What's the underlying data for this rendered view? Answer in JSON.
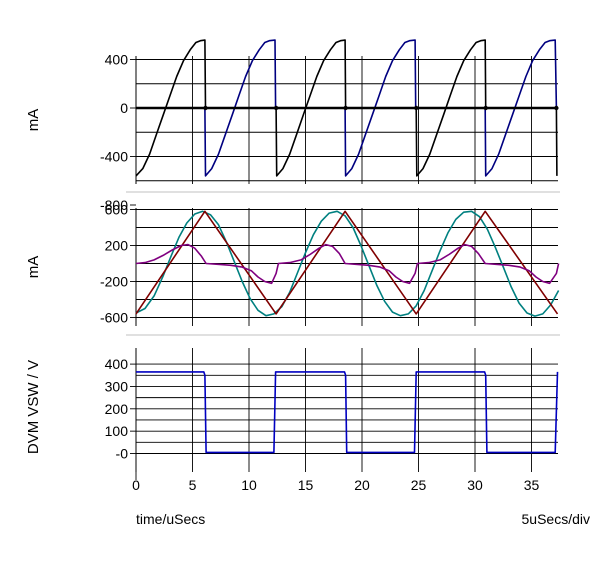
{
  "chart_data": [
    {
      "type": "line",
      "ylabel": "mA",
      "yticks": [
        400,
        0,
        -400,
        -800
      ],
      "ytick_labels": [
        "400",
        "0",
        "-400",
        "-800"
      ],
      "ylim": [
        -800,
        600
      ],
      "xlim": [
        0,
        37.5
      ],
      "series": [
        {
          "color": "#000000",
          "values": [
            [
              0,
              -560
            ],
            [
              0.6,
              -500
            ],
            [
              1.2,
              -380
            ],
            [
              1.8,
              -220
            ],
            [
              2.4,
              -60
            ],
            [
              3,
              100
            ],
            [
              3.6,
              260
            ],
            [
              4.2,
              390
            ],
            [
              4.8,
              480
            ],
            [
              5.3,
              540
            ],
            [
              5.7,
              555
            ],
            [
              6.1,
              560
            ],
            [
              6.15,
              0
            ],
            [
              12.4,
              0
            ],
            [
              12.45,
              -560
            ],
            [
              13,
              -500
            ],
            [
              13.6,
              -380
            ],
            [
              14.2,
              -220
            ],
            [
              14.8,
              -60
            ],
            [
              15.4,
              100
            ],
            [
              16,
              260
            ],
            [
              16.6,
              390
            ],
            [
              17.2,
              480
            ],
            [
              17.7,
              540
            ],
            [
              18.1,
              555
            ],
            [
              18.5,
              560
            ],
            [
              18.55,
              0
            ],
            [
              24.8,
              0
            ],
            [
              24.85,
              -560
            ],
            [
              25.4,
              -500
            ],
            [
              26,
              -380
            ],
            [
              26.6,
              -220
            ],
            [
              27.2,
              -60
            ],
            [
              27.8,
              100
            ],
            [
              28.4,
              260
            ],
            [
              29,
              390
            ],
            [
              29.6,
              480
            ],
            [
              30.1,
              540
            ],
            [
              30.5,
              555
            ],
            [
              30.9,
              560
            ],
            [
              30.95,
              0
            ],
            [
              37.2,
              0
            ],
            [
              37.25,
              -560
            ]
          ]
        },
        {
          "color": "#000080",
          "values": [
            [
              0,
              0
            ],
            [
              6.1,
              0
            ],
            [
              6.15,
              -560
            ],
            [
              6.7,
              -500
            ],
            [
              7.3,
              -380
            ],
            [
              7.9,
              -220
            ],
            [
              8.5,
              -60
            ],
            [
              9.1,
              100
            ],
            [
              9.7,
              260
            ],
            [
              10.3,
              390
            ],
            [
              10.9,
              480
            ],
            [
              11.4,
              540
            ],
            [
              11.8,
              555
            ],
            [
              12.3,
              560
            ],
            [
              12.35,
              0
            ],
            [
              18.5,
              0
            ],
            [
              18.55,
              -560
            ],
            [
              19.1,
              -500
            ],
            [
              19.7,
              -380
            ],
            [
              20.3,
              -220
            ],
            [
              20.9,
              -60
            ],
            [
              21.5,
              100
            ],
            [
              22.1,
              260
            ],
            [
              22.7,
              390
            ],
            [
              23.3,
              480
            ],
            [
              23.8,
              540
            ],
            [
              24.2,
              555
            ],
            [
              24.7,
              560
            ],
            [
              24.75,
              0
            ],
            [
              30.9,
              0
            ],
            [
              30.95,
              -560
            ],
            [
              31.5,
              -500
            ],
            [
              32.1,
              -380
            ],
            [
              32.7,
              -220
            ],
            [
              33.3,
              -60
            ],
            [
              33.9,
              100
            ],
            [
              34.5,
              260
            ],
            [
              35.1,
              390
            ],
            [
              35.7,
              480
            ],
            [
              36.2,
              540
            ],
            [
              36.6,
              555
            ],
            [
              37.1,
              560
            ],
            [
              37.2,
              0
            ]
          ]
        }
      ]
    },
    {
      "type": "line",
      "ylabel": "mA",
      "yticks": [
        600,
        200,
        -200,
        -600
      ],
      "ytick_labels": [
        "600",
        "200",
        "-200",
        "-600"
      ],
      "ylim": [
        -750,
        750
      ],
      "xlim": [
        0,
        37.5
      ],
      "series": [
        {
          "color": "#008080",
          "values": [
            [
              0,
              -550
            ],
            [
              0.8,
              -500
            ],
            [
              1.6,
              -360
            ],
            [
              2.4,
              -140
            ],
            [
              3.1,
              80
            ],
            [
              3.8,
              290
            ],
            [
              4.5,
              450
            ],
            [
              5.2,
              550
            ],
            [
              5.9,
              580
            ],
            [
              6.6,
              540
            ],
            [
              7.3,
              430
            ],
            [
              8,
              240
            ],
            [
              8.7,
              20
            ],
            [
              9.4,
              -200
            ],
            [
              10.1,
              -390
            ],
            [
              10.8,
              -520
            ],
            [
              11.5,
              -580
            ],
            [
              12.2,
              -560
            ],
            [
              12.9,
              -480
            ],
            [
              13.6,
              -320
            ],
            [
              14.3,
              -100
            ],
            [
              15,
              120
            ],
            [
              15.7,
              320
            ],
            [
              16.4,
              470
            ],
            [
              17.1,
              560
            ],
            [
              17.8,
              580
            ],
            [
              18.5,
              530
            ],
            [
              19.2,
              400
            ],
            [
              19.9,
              200
            ],
            [
              20.6,
              -20
            ],
            [
              21.3,
              -240
            ],
            [
              22,
              -420
            ],
            [
              22.7,
              -540
            ],
            [
              23.4,
              -580
            ],
            [
              24.1,
              -560
            ],
            [
              24.8,
              -470
            ],
            [
              25.5,
              -300
            ],
            [
              26.2,
              -80
            ],
            [
              26.9,
              140
            ],
            [
              27.6,
              340
            ],
            [
              28.3,
              490
            ],
            [
              29,
              570
            ],
            [
              29.7,
              580
            ],
            [
              30.4,
              520
            ],
            [
              31.1,
              380
            ],
            [
              31.8,
              180
            ],
            [
              32.5,
              -40
            ],
            [
              33.2,
              -260
            ],
            [
              33.9,
              -440
            ],
            [
              34.6,
              -550
            ],
            [
              35.3,
              -585
            ],
            [
              36,
              -560
            ],
            [
              36.7,
              -460
            ],
            [
              37.4,
              -300
            ]
          ]
        },
        {
          "color": "#800000",
          "values": [
            [
              0,
              -560
            ],
            [
              6.1,
              580
            ],
            [
              12.4,
              -560
            ],
            [
              18.5,
              580
            ],
            [
              24.8,
              -560
            ],
            [
              30.9,
              580
            ],
            [
              37.3,
              -560
            ]
          ]
        },
        {
          "color": "#800080",
          "values": [
            [
              0,
              0
            ],
            [
              0.8,
              10
            ],
            [
              1.6,
              40
            ],
            [
              2.4,
              90
            ],
            [
              3.2,
              150
            ],
            [
              4,
              200
            ],
            [
              4.6,
              210
            ],
            [
              5.2,
              170
            ],
            [
              5.8,
              80
            ],
            [
              6.2,
              0
            ],
            [
              7.4,
              -10
            ],
            [
              8.4,
              -20
            ],
            [
              9.4,
              -40
            ],
            [
              10.2,
              -80
            ],
            [
              10.8,
              -150
            ],
            [
              11.4,
              -200
            ],
            [
              12,
              -220
            ],
            [
              12.4,
              -110
            ],
            [
              12.6,
              0
            ],
            [
              13.6,
              10
            ],
            [
              14.6,
              40
            ],
            [
              15.4,
              100
            ],
            [
              16.2,
              170
            ],
            [
              16.8,
              210
            ],
            [
              17.4,
              190
            ],
            [
              18,
              110
            ],
            [
              18.5,
              0
            ],
            [
              19.6,
              -10
            ],
            [
              20.6,
              -20
            ],
            [
              21.6,
              -40
            ],
            [
              22.4,
              -80
            ],
            [
              23,
              -150
            ],
            [
              23.6,
              -200
            ],
            [
              24.2,
              -220
            ],
            [
              24.7,
              -110
            ],
            [
              24.9,
              0
            ],
            [
              25.9,
              10
            ],
            [
              26.9,
              40
            ],
            [
              27.7,
              100
            ],
            [
              28.5,
              170
            ],
            [
              29.1,
              210
            ],
            [
              29.7,
              190
            ],
            [
              30.3,
              110
            ],
            [
              30.9,
              0
            ],
            [
              32,
              -10
            ],
            [
              33,
              -20
            ],
            [
              34,
              -40
            ],
            [
              34.8,
              -80
            ],
            [
              35.4,
              -150
            ],
            [
              36,
              -200
            ],
            [
              36.6,
              -220
            ],
            [
              37.2,
              -110
            ],
            [
              37.4,
              0
            ]
          ]
        }
      ]
    },
    {
      "type": "line",
      "ylabel": "DVM VSW / V",
      "yticks": [
        400,
        300,
        200,
        100,
        0
      ],
      "ytick_labels": [
        "400",
        "300",
        "200",
        "100",
        "-0"
      ],
      "ylim": [
        -25,
        430
      ],
      "xlim": [
        0,
        37.5
      ],
      "xticks": [
        0,
        5,
        10,
        15,
        20,
        25,
        30,
        35
      ],
      "xtick_labels": [
        "0",
        "5",
        "10",
        "15",
        "20",
        "25",
        "30",
        "35"
      ],
      "series": [
        {
          "color": "#0000c0",
          "values": [
            [
              0,
              365
            ],
            [
              6.0,
              365
            ],
            [
              6.1,
              350
            ],
            [
              6.2,
              5
            ],
            [
              12.2,
              5
            ],
            [
              12.35,
              365
            ],
            [
              18.45,
              365
            ],
            [
              18.55,
              350
            ],
            [
              18.65,
              5
            ],
            [
              24.65,
              5
            ],
            [
              24.8,
              365
            ],
            [
              30.85,
              365
            ],
            [
              30.95,
              350
            ],
            [
              31.05,
              5
            ],
            [
              37.1,
              5
            ],
            [
              37.3,
              365
            ]
          ]
        }
      ]
    }
  ],
  "footer": {
    "xlabel": "time/uSecs",
    "scale": "5uSecs/div"
  }
}
